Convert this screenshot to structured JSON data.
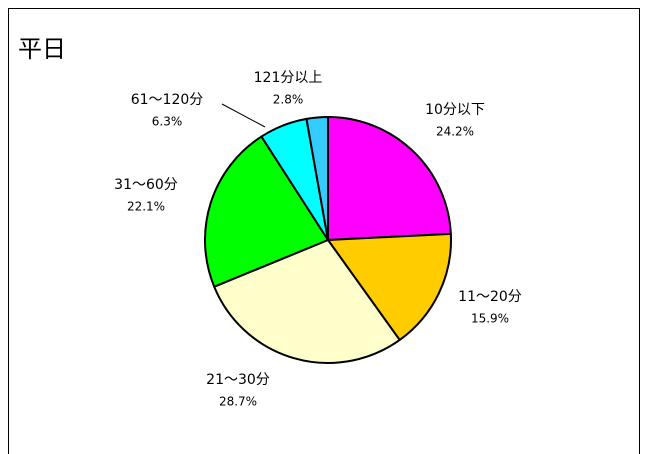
{
  "chart_data": {
    "type": "pie",
    "title": "平日",
    "categories": [
      "10分以下",
      "11～20分",
      "21～30分",
      "31～60分",
      "61～120分",
      "121分以上"
    ],
    "values": [
      24.2,
      15.9,
      28.7,
      22.1,
      6.3,
      2.8
    ],
    "value_labels": [
      "24.2%",
      "15.9%",
      "28.7%",
      "22.1%",
      "6.3%",
      "2.8%"
    ],
    "colors": [
      "#ff00ff",
      "#ffcc00",
      "#ffffcc",
      "#00ff00",
      "#00ffff",
      "#33ccff"
    ]
  }
}
